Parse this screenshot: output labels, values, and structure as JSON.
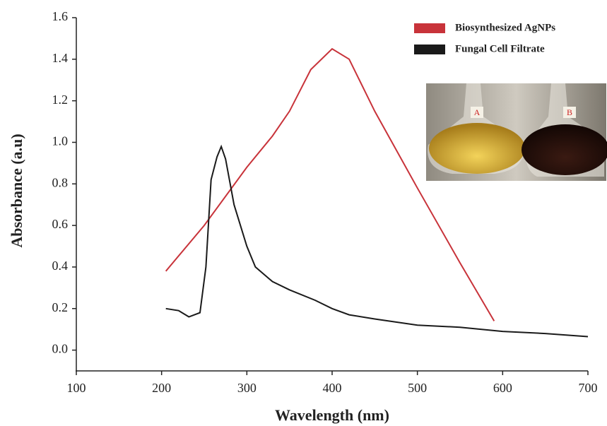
{
  "chart_data": {
    "type": "line",
    "xlabel": "Wavelength (nm)",
    "ylabel": "Absorbance (a.u)",
    "xlim": [
      100,
      700
    ],
    "xticks": [
      100,
      200,
      300,
      400,
      500,
      600,
      700
    ],
    "ylim": [
      -0.1,
      1.6
    ],
    "yticks": [
      {
        "value": 0,
        "label": "0.0"
      },
      0.2,
      0.4,
      0.6,
      0.8,
      {
        "value": 1,
        "label": "1.0"
      },
      1.2,
      1.4,
      1.6
    ],
    "grid": false,
    "legend": "upper right",
    "annotations": [
      "A",
      "B"
    ],
    "series": [
      {
        "name": "Biosynthesized AgNPs",
        "color": "#c8333a",
        "x": [
          205,
          250,
          300,
          330,
          350,
          375,
          400,
          420,
          450,
          500,
          550,
          590
        ],
        "values": [
          0.38,
          0.6,
          0.88,
          1.03,
          1.15,
          1.35,
          1.45,
          1.4,
          1.15,
          0.78,
          0.42,
          0.14
        ]
      },
      {
        "name": "Fungal Cell Filtrate",
        "color": "#1a1a1a",
        "x": [
          205,
          220,
          232,
          245,
          252,
          258,
          265,
          270,
          275,
          285,
          300,
          310,
          330,
          350,
          380,
          400,
          420,
          450,
          500,
          550,
          600,
          650,
          700
        ],
        "values": [
          0.2,
          0.19,
          0.16,
          0.18,
          0.4,
          0.82,
          0.93,
          0.98,
          0.92,
          0.7,
          0.5,
          0.4,
          0.33,
          0.29,
          0.24,
          0.2,
          0.17,
          0.15,
          0.12,
          0.11,
          0.09,
          0.08,
          0.065
        ]
      }
    ]
  }
}
